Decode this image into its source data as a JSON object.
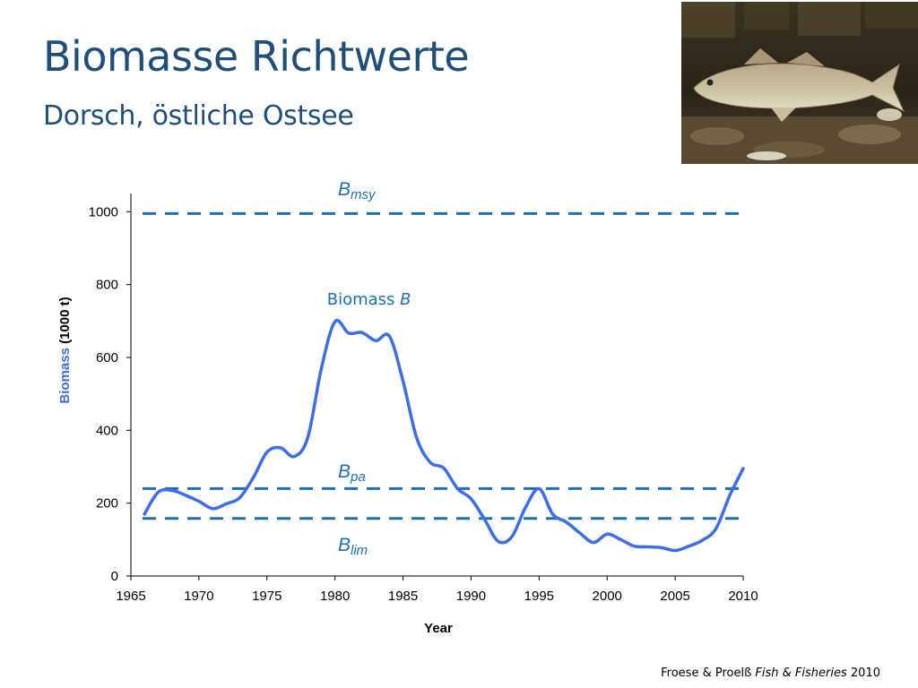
{
  "slide": {
    "title": "Biomasse Richtwerte",
    "subtitle": "Dorsch, östliche Ostsee",
    "photo_icon": "fish-photo",
    "citation": {
      "authors": "Froese & Proelß",
      "journal": "Fish & Fisheries",
      "year": "2010"
    }
  },
  "chart_data": {
    "type": "line",
    "title": "",
    "xlabel": "Year",
    "ylabel": {
      "main": "Biomass",
      "unit": "(1000 t)"
    },
    "xlim": [
      1965,
      2010
    ],
    "ylim": [
      0,
      1050
    ],
    "xticks": [
      1965,
      1970,
      1975,
      1980,
      1985,
      1990,
      1995,
      2000,
      2005,
      2010
    ],
    "yticks": [
      0,
      200,
      400,
      600,
      800,
      1000
    ],
    "grid": false,
    "colors": {
      "series": "#3d6ee8",
      "reference": "#1f6fb2",
      "axis_label": "#3d6ee8",
      "annotation": "#1f6fb2"
    },
    "series": [
      {
        "name": "Biomass B",
        "x": [
          1966,
          1967,
          1968,
          1969,
          1970,
          1971,
          1972,
          1973,
          1974,
          1975,
          1976,
          1977,
          1978,
          1979,
          1980,
          1981,
          1982,
          1983,
          1984,
          1985,
          1986,
          1987,
          1988,
          1989,
          1990,
          1991,
          1992,
          1993,
          1994,
          1995,
          1996,
          1997,
          1998,
          1999,
          2000,
          2001,
          2002,
          2003,
          2004,
          2005,
          2006,
          2007,
          2008,
          2009,
          2010
        ],
        "y": [
          170,
          230,
          235,
          222,
          205,
          185,
          198,
          215,
          270,
          340,
          352,
          328,
          380,
          570,
          698,
          667,
          668,
          646,
          658,
          535,
          380,
          312,
          296,
          240,
          212,
          155,
          95,
          108,
          188,
          240,
          170,
          148,
          118,
          92,
          115,
          100,
          82,
          80,
          78,
          70,
          82,
          98,
          130,
          220,
          295
        ]
      }
    ],
    "reference_lines": [
      {
        "name": "B",
        "subscript": "msy",
        "value": 995
      },
      {
        "name": "B",
        "subscript": "pa",
        "value": 240
      },
      {
        "name": "B",
        "subscript": "lim",
        "value": 158
      }
    ],
    "annotations": [
      {
        "text": "Biomass",
        "italic_suffix": "B",
        "x": 1982.5,
        "y": 745
      }
    ]
  }
}
